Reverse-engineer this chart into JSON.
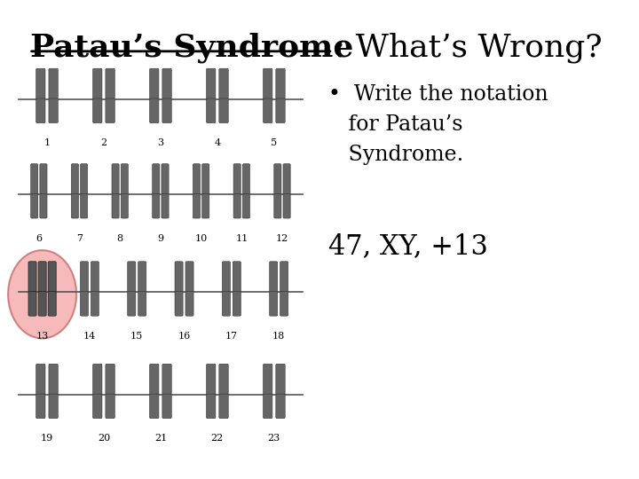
{
  "title_bold": "Patau’s Syndrome",
  "title_normal": ": What’s Wrong?",
  "bullet_text": "•  Write the notation\n   for Patau’s\n   Syndrome.",
  "answer_text": "47, XY, +13",
  "background_color": "#ffffff",
  "title_fontsize": 26,
  "bullet_fontsize": 17,
  "answer_fontsize": 22,
  "circle_color": "#f4a0a0",
  "circle_edge_color": "#c06060"
}
